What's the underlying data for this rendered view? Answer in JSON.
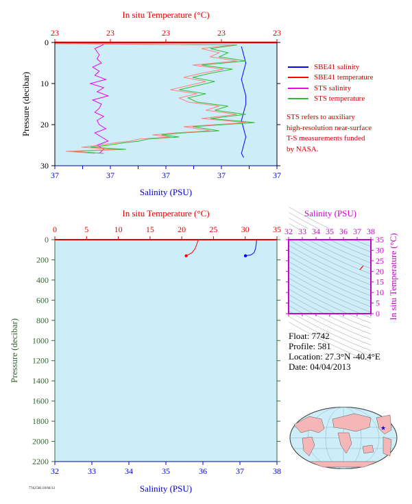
{
  "colors": {
    "plot_bg": "#cdeef8",
    "axis_red": "#dd0000",
    "axis_blue": "#0000cc",
    "axis_green": "#336633",
    "axis_magenta": "#cc00cc",
    "sbe_salinity": "#0000ff",
    "sbe_temperature": "#ff0000",
    "sts_salinity": "#ee00ee",
    "sts_temperature": "#33bb33",
    "sts_temperature_alt": "#ff8080"
  },
  "legend": {
    "items": [
      {
        "label": "SBE41 salinity",
        "color": "#0000ff"
      },
      {
        "label": "SBE41 temperature",
        "color": "#ff0000"
      },
      {
        "label": "STS salinity",
        "color": "#ee00ee"
      },
      {
        "label": "STS temperature",
        "color": "#33bb33"
      }
    ]
  },
  "note": {
    "lines": [
      "STS refers to auxiliary",
      "high-resolution near-surface",
      "T-S measurements funded",
      "by NASA."
    ]
  },
  "info": {
    "float": "Float:  7742",
    "profile": "Profile:  581",
    "location": "Location:  27.3°N  -40.4°E",
    "date": "Date:  04/04/2013"
  },
  "footer_tiny": "7742/581 03/04/13",
  "chart_data": [
    {
      "type": "line",
      "panel": "near-surface profile",
      "title": "",
      "top_axis_label": "In situ Temperature (°C)",
      "top_ticks": [
        "23",
        "23",
        "23",
        "23",
        "23"
      ],
      "bottom_axis_label": "Salinity (PSU)",
      "bottom_ticks": [
        "37",
        "37",
        "37",
        "37",
        "37",
        "37",
        "37",
        "37",
        "37"
      ],
      "ylabel": "Pressure (decibar)",
      "y_ticks": [
        "0",
        "10",
        "20",
        "30"
      ],
      "ylim": [
        30,
        0
      ],
      "series": [
        {
          "name": "SBE41 salinity",
          "axis": "bottom",
          "x_frac": [
            0.84,
            0.85,
            0.86,
            0.85,
            0.84,
            0.85,
            0.86,
            0.86,
            0.85,
            0.84,
            0.85,
            0.86,
            0.85,
            0.84,
            0.85
          ],
          "pressure": [
            1,
            3,
            5,
            7,
            9,
            11,
            13,
            15,
            17,
            19,
            21,
            23,
            25,
            27,
            28
          ]
        },
        {
          "name": "SBE41 temperature",
          "axis": "top",
          "x_frac": [
            0.0,
            1.0
          ],
          "pressure": [
            0.0,
            0.0
          ]
        },
        {
          "name": "STS salinity",
          "axis": "bottom",
          "x_frac": [
            0.22,
            0.18,
            0.2,
            0.19,
            0.21,
            0.17,
            0.2,
            0.18,
            0.23,
            0.16,
            0.22,
            0.19,
            0.24,
            0.17,
            0.21,
            0.2,
            0.18,
            0.22,
            0.19,
            0.2,
            0.23,
            0.18,
            0.21,
            0.24,
            0.19,
            0.22,
            0.2
          ],
          "pressure": [
            0.5,
            1.5,
            3,
            4,
            5,
            6,
            7,
            8,
            9,
            10,
            11,
            12,
            13,
            14,
            15,
            16,
            17,
            18,
            19,
            20,
            21,
            22,
            23,
            24,
            25,
            26,
            27
          ]
        },
        {
          "name": "STS temperature",
          "axis": "top",
          "x_frac": [
            0.0,
            0.82,
            0.7,
            0.78,
            0.74,
            0.86,
            0.66,
            0.8,
            0.7,
            0.62,
            0.72,
            0.64,
            0.56,
            0.68,
            0.6,
            0.64,
            0.78,
            0.72,
            0.86,
            0.7,
            0.9,
            0.62,
            0.74,
            0.58,
            0.48,
            0.56,
            0.42,
            0.38,
            0.3,
            0.24,
            0.16,
            0.32,
            0.08,
            0.22
          ],
          "pressure": [
            0.3,
            0.6,
            1.5,
            2.5,
            3.5,
            4.5,
            5.5,
            6.5,
            7.5,
            8.5,
            9.5,
            10.5,
            11.5,
            12.5,
            13.5,
            14.5,
            15.5,
            16.5,
            17.5,
            18.5,
            19.5,
            20.5,
            21.5,
            22,
            22.5,
            23,
            23.5,
            24,
            24.5,
            25,
            25.5,
            26,
            26.5,
            27
          ]
        },
        {
          "name": "",
          "axis": "top",
          "x_frac": [
            0.0,
            0.8,
            0.66,
            0.74,
            0.7,
            0.82,
            0.62,
            0.76,
            0.66,
            0.58,
            0.68,
            0.6,
            0.52,
            0.64,
            0.56,
            0.6,
            0.74,
            0.68,
            0.82,
            0.66,
            0.86,
            0.58,
            0.7,
            0.54,
            0.44,
            0.52,
            0.38,
            0.34,
            0.26,
            0.2,
            0.12,
            0.28,
            0.05,
            0.18
          ],
          "pressure": [
            0.3,
            0.6,
            1.5,
            2.5,
            3.5,
            4.5,
            5.5,
            6.5,
            7.5,
            8.5,
            9.5,
            10.5,
            11.5,
            12.5,
            13.5,
            14.5,
            15.5,
            16.5,
            17.5,
            18.5,
            19.5,
            20.5,
            21.5,
            22,
            22.5,
            23,
            23.5,
            24,
            24.5,
            25,
            25.5,
            26,
            26.5,
            27
          ]
        }
      ]
    },
    {
      "type": "line",
      "panel": "full profile",
      "title": "",
      "top_axis_label": "In situ Temperature (°C)",
      "top_ticks": [
        "0",
        "5",
        "10",
        "15",
        "20",
        "25",
        "30",
        "35"
      ],
      "xlim_top": [
        0,
        35
      ],
      "bottom_axis_label": "Salinity (PSU)",
      "bottom_ticks": [
        "32",
        "33",
        "34",
        "35",
        "36",
        "37",
        "38"
      ],
      "xlim_bottom": [
        32,
        38
      ],
      "ylabel": "Pressure (decibar)",
      "y_ticks": [
        "0",
        "200",
        "400",
        "600",
        "800",
        "1000",
        "1200",
        "1400",
        "1600",
        "1800",
        "2000",
        "2200"
      ],
      "ylim": [
        2200,
        0
      ],
      "series": [
        {
          "name": "SBE41 temperature",
          "axis": "top",
          "x": [
            22.6,
            22.4,
            22.1,
            21.6,
            21.0,
            20.7
          ],
          "pressure": [
            0,
            40,
            90,
            130,
            150,
            160
          ]
        },
        {
          "name": "SBE41 salinity",
          "axis": "bottom",
          "x": [
            37.45,
            37.44,
            37.42,
            37.38,
            37.3,
            37.15
          ],
          "pressure": [
            0,
            40,
            90,
            130,
            150,
            160
          ]
        }
      ]
    },
    {
      "type": "scatter",
      "panel": "T-S diagram",
      "title": "",
      "xlabel": "Salinity (PSU)",
      "ylabel": "In situ Temperature (°C)",
      "x_ticks": [
        "32",
        "33",
        "34",
        "35",
        "36",
        "37",
        "38"
      ],
      "xlim": [
        32,
        38
      ],
      "y_ticks": [
        "0",
        "5",
        "10",
        "15",
        "20",
        "25",
        "30",
        "35"
      ],
      "ylim": [
        0,
        35
      ],
      "series": [
        {
          "name": "",
          "x": [
            37.2,
            37.3,
            37.45
          ],
          "y": [
            20.7,
            21.6,
            22.6
          ]
        }
      ]
    }
  ]
}
